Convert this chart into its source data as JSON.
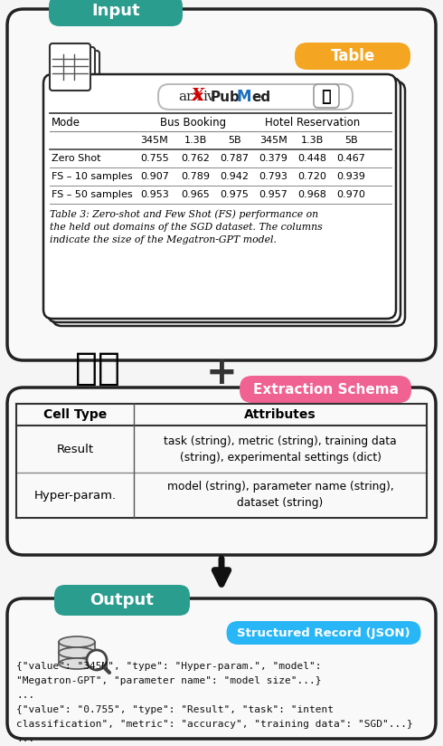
{
  "fig_width": 4.9,
  "fig_height": 8.24,
  "dpi": 100,
  "bg_color": "#f5f5f5",
  "input_label": "Input",
  "input_bg": "#2a9d8f",
  "input_text_color": "#ffffff",
  "table_label": "Table",
  "table_bg": "#f4a522",
  "table_text_color": "#ffffff",
  "extraction_label": "Extraction Schema",
  "extraction_bg": "#f06292",
  "extraction_text_color": "#ffffff",
  "output_label": "Output",
  "output_bg": "#2a9d8f",
  "output_text_color": "#ffffff",
  "structured_label": "Structured Record (JSON)",
  "structured_bg": "#29b6f6",
  "structured_text_color": "#ffffff",
  "outer_box_ec": "#222222",
  "inner_box_ec": "#222222",
  "table_rows": [
    [
      "Zero Shot",
      "0.755",
      "0.762",
      "0.787",
      "0.379",
      "0.448",
      "0.467"
    ],
    [
      "FS – 10 samples",
      "0.907",
      "0.789",
      "0.942",
      "0.793",
      "0.720",
      "0.939"
    ],
    [
      "FS – 50 samples",
      "0.953",
      "0.965",
      "0.975",
      "0.957",
      "0.968",
      "0.970"
    ]
  ],
  "table_caption": "Table 3: Zero-shot and Few Shot (FS) performance on\nthe held out domains of the SGD dataset. The columns\nindicate the size of the Megatron-GPT model.",
  "schema_col1_header": "Cell Type",
  "schema_col2_header": "Attributes",
  "schema_rows": [
    [
      "Result",
      "task (string), metric (string), training data\n(string), experimental settings (dict)"
    ],
    [
      "Hyper-param.",
      "model (string), parameter name (string),\ndataset (string)"
    ]
  ],
  "output_text_lines": [
    "{\"value\": \"345M\", \"type\": \"Hyper-param.\", \"model\":",
    "\"Megatron-GPT\", \"parameter name\": \"model size\"...}",
    "...",
    "{\"value\": \"0.755\", \"type\": \"Result\", \"task\": \"intent",
    "classification\", \"metric\": \"accuracy\", \"training data\": \"SGD\"...}",
    "..."
  ],
  "arrow_color": "#111111",
  "plus_color": "#333333"
}
